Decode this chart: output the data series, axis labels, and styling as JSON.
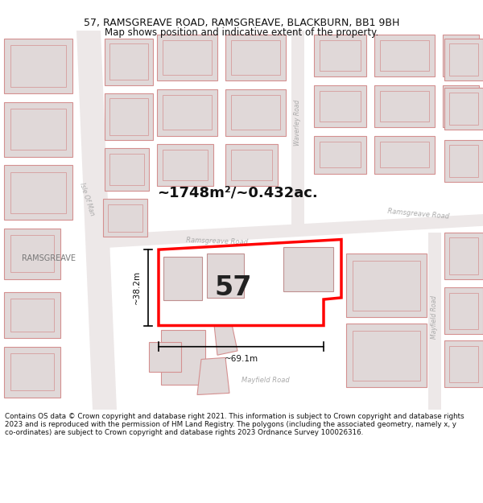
{
  "title": "57, RAMSGREAVE ROAD, RAMSGREAVE, BLACKBURN, BB1 9BH",
  "subtitle": "Map shows position and indicative extent of the property.",
  "footer": "Contains OS data © Crown copyright and database right 2021. This information is subject to Crown copyright and database rights 2023 and is reproduced with the permission of HM Land Registry. The polygons (including the associated geometry, namely x, y co-ordinates) are subject to Crown copyright and database rights 2023 Ordnance Survey 100026316.",
  "area_label": "~1748m²/~0.432ac.",
  "width_label": "~69.1m",
  "height_label": "~38.2m",
  "number_label": "57",
  "map_bg": "#f2eeee",
  "building_fill": "#e0d8d8",
  "building_stroke": "#d49090",
  "highlight_fill": "#ffffff",
  "highlight_stroke": "#ff0000",
  "text_color": "#333333",
  "road_text_color": "#aaaaaa",
  "label_color": "#888888"
}
